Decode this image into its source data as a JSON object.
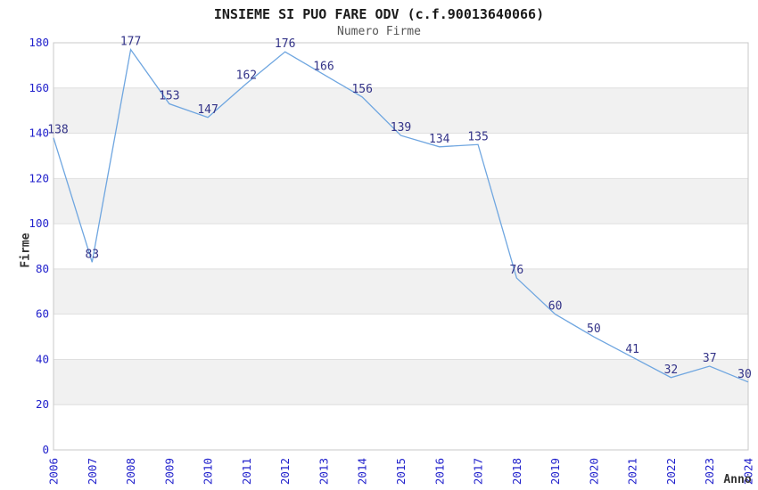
{
  "chart_data": {
    "type": "line",
    "title": "INSIEME SI PUO FARE ODV (c.f.90013640066)",
    "subtitle": "Numero Firme",
    "xlabel": "Anno",
    "ylabel": "Firme",
    "categories": [
      "2006",
      "2007",
      "2008",
      "2009",
      "2010",
      "2011",
      "2012",
      "2013",
      "2014",
      "2015",
      "2016",
      "2017",
      "2018",
      "2019",
      "2020",
      "2021",
      "2022",
      "2023",
      "2024"
    ],
    "values": [
      138,
      83,
      177,
      153,
      147,
      162,
      176,
      166,
      156,
      139,
      134,
      135,
      76,
      60,
      50,
      41,
      32,
      37,
      30
    ],
    "ylim": [
      0,
      180
    ],
    "ytick_step": 20,
    "yticks": [
      0,
      20,
      40,
      60,
      80,
      100,
      120,
      140,
      160,
      180
    ],
    "grid": "horizontal-gridlines-with-alternating-bands",
    "legend": "none",
    "point_labels_visible": true,
    "colors": {
      "line": "#6FA6E0",
      "tick_label": "#2222CC",
      "value_label": "#333388",
      "band_gray": "#F1F1F1",
      "band_white": "#FFFFFF",
      "grid_line": "#DFDFDF",
      "axis_border": "#C8C8C8",
      "title": "#1A1A1A",
      "subtitle": "#555555",
      "axis_label": "#333333"
    }
  }
}
